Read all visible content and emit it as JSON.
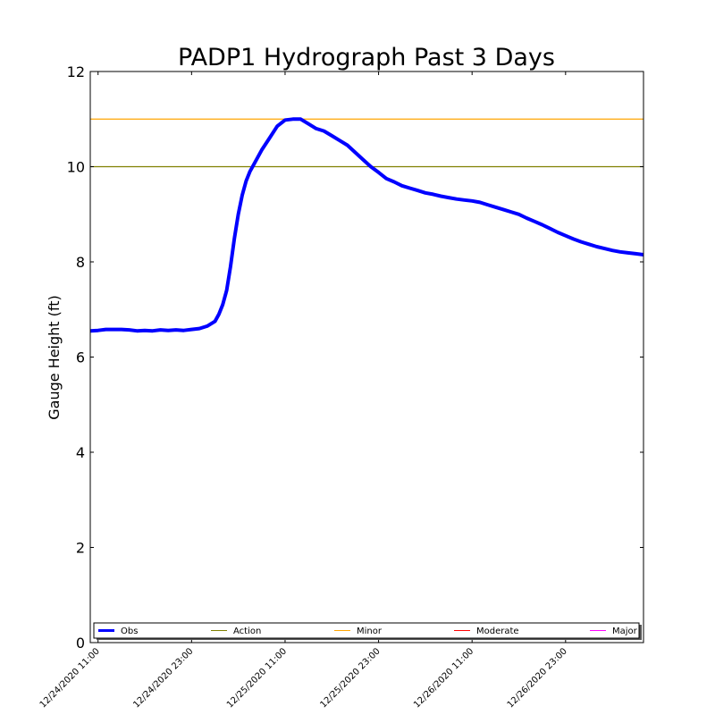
{
  "chart_data": {
    "type": "line",
    "title": "PADP1 Hydrograph Past 3 Days",
    "xlabel": "",
    "ylabel": "Gauge Height (ft)",
    "ylim": [
      0,
      12
    ],
    "xlim_hours_since_first_tick": [
      -1,
      70
    ],
    "yticks": [
      0,
      2,
      4,
      6,
      8,
      10,
      12
    ],
    "x_ticks": [
      {
        "hours": 0,
        "label": "12/24/2020 11:00"
      },
      {
        "hours": 12,
        "label": "12/24/2020 23:00"
      },
      {
        "hours": 24,
        "label": "12/25/2020 11:00"
      },
      {
        "hours": 36,
        "label": "12/25/2020 23:00"
      },
      {
        "hours": 48,
        "label": "12/26/2020 11:00"
      },
      {
        "hours": 60,
        "label": "12/26/2020 23:00"
      }
    ],
    "grid": false,
    "legend_position": "bottom",
    "series": [
      {
        "name": "Obs",
        "color": "#0000ff",
        "x": [
          -1,
          0,
          1,
          2,
          3,
          4,
          5,
          6,
          7,
          8,
          9,
          10,
          11,
          12,
          13,
          14,
          15,
          15.5,
          16,
          16.5,
          17,
          17.5,
          18,
          18.5,
          19,
          19.5,
          20,
          21,
          22,
          23,
          24,
          25,
          26,
          27,
          28,
          29,
          30,
          31,
          32,
          33,
          34,
          35,
          36,
          37,
          38,
          39,
          40,
          41,
          42,
          43,
          44,
          45,
          46,
          47,
          48,
          49,
          50,
          51,
          52,
          53,
          54,
          55,
          56,
          57,
          58,
          59,
          60,
          61,
          62,
          63,
          64,
          65,
          66,
          67,
          68,
          69,
          70
        ],
        "y": [
          6.55,
          6.56,
          6.58,
          6.58,
          6.58,
          6.57,
          6.55,
          6.56,
          6.55,
          6.57,
          6.56,
          6.57,
          6.56,
          6.58,
          6.6,
          6.65,
          6.75,
          6.9,
          7.1,
          7.4,
          7.9,
          8.5,
          9.0,
          9.4,
          9.7,
          9.9,
          10.05,
          10.35,
          10.6,
          10.85,
          10.98,
          11.0,
          11.0,
          10.9,
          10.8,
          10.75,
          10.65,
          10.55,
          10.45,
          10.3,
          10.15,
          10.0,
          9.88,
          9.75,
          9.68,
          9.6,
          9.55,
          9.5,
          9.45,
          9.42,
          9.38,
          9.35,
          9.32,
          9.3,
          9.28,
          9.25,
          9.2,
          9.15,
          9.1,
          9.05,
          9.0,
          8.92,
          8.85,
          8.78,
          8.7,
          8.62,
          8.55,
          8.48,
          8.42,
          8.37,
          8.32,
          8.28,
          8.24,
          8.21,
          8.19,
          8.17,
          8.15
        ]
      }
    ],
    "thresholds": [
      {
        "name": "Action",
        "value": 10,
        "color": "#808000"
      },
      {
        "name": "Minor",
        "value": 11,
        "color": "#ffa500"
      },
      {
        "name": "Moderate",
        "value": null,
        "color": "#ff0000"
      },
      {
        "name": "Major",
        "value": null,
        "color": "#ff00ff"
      }
    ]
  }
}
